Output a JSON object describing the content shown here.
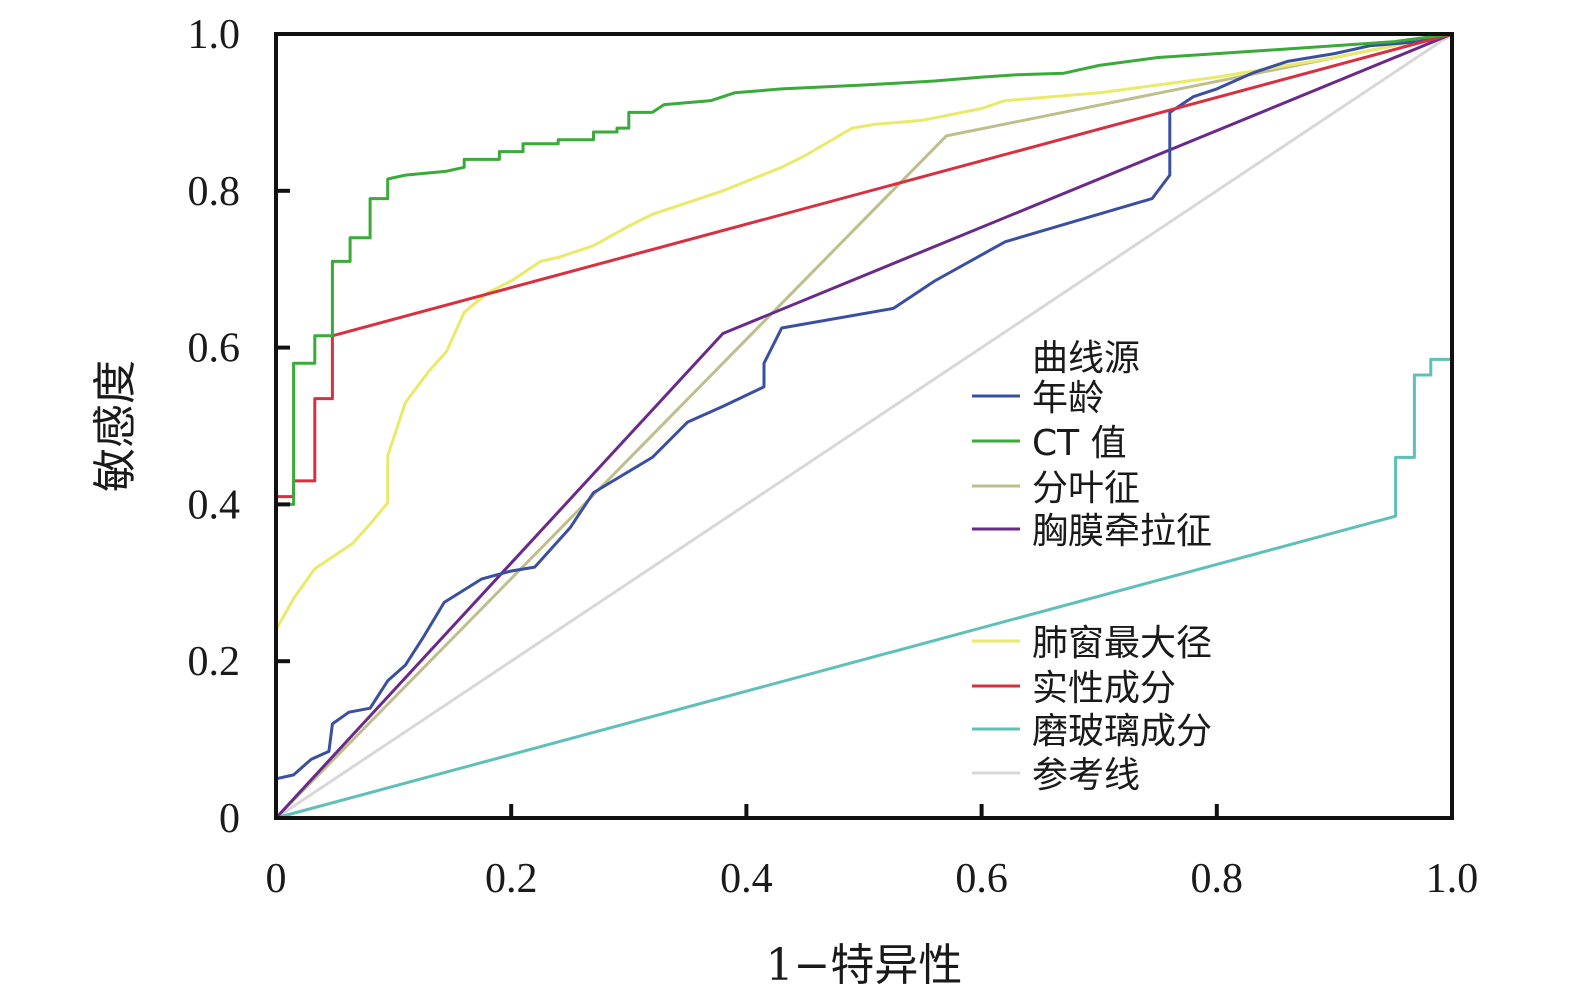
{
  "chart_data": {
    "type": "line",
    "title": "",
    "xlabel": "1−特异性",
    "ylabel": "敏感度",
    "xlim": [
      0,
      1
    ],
    "ylim": [
      0,
      1
    ],
    "x_ticks": [
      "0",
      "0.2",
      "0.4",
      "0.6",
      "0.8",
      "1.0"
    ],
    "y_ticks": [
      "0",
      "0.2",
      "0.4",
      "0.6",
      "0.8",
      "1.0"
    ],
    "grid": false,
    "legend_placement": "right",
    "legend_title": "曲线源",
    "series": [
      {
        "name": "年龄",
        "color": "#3a4fa0",
        "points": [
          [
            0,
            0
          ],
          [
            0,
            0.05
          ],
          [
            0.015,
            0.055
          ],
          [
            0.03,
            0.075
          ],
          [
            0.045,
            0.085
          ],
          [
            0.048,
            0.12
          ],
          [
            0.062,
            0.135
          ],
          [
            0.08,
            0.14
          ],
          [
            0.095,
            0.175
          ],
          [
            0.11,
            0.195
          ],
          [
            0.125,
            0.23
          ],
          [
            0.143,
            0.275
          ],
          [
            0.175,
            0.305
          ],
          [
            0.2,
            0.315
          ],
          [
            0.22,
            0.32
          ],
          [
            0.25,
            0.37
          ],
          [
            0.27,
            0.415
          ],
          [
            0.32,
            0.46
          ],
          [
            0.35,
            0.505
          ],
          [
            0.38,
            0.525
          ],
          [
            0.415,
            0.55
          ],
          [
            0.415,
            0.58
          ],
          [
            0.43,
            0.625
          ],
          [
            0.525,
            0.65
          ],
          [
            0.56,
            0.685
          ],
          [
            0.62,
            0.735
          ],
          [
            0.745,
            0.79
          ],
          [
            0.76,
            0.82
          ],
          [
            0.76,
            0.9
          ],
          [
            0.78,
            0.92
          ],
          [
            0.8,
            0.93
          ],
          [
            0.83,
            0.95
          ],
          [
            0.86,
            0.965
          ],
          [
            0.9,
            0.975
          ],
          [
            0.93,
            0.985
          ],
          [
            0.97,
            0.99
          ],
          [
            1,
            1
          ]
        ]
      },
      {
        "name": "CT 值",
        "color": "#3aaa3a",
        "points": [
          [
            0,
            0
          ],
          [
            0,
            0.4
          ],
          [
            0.015,
            0.4
          ],
          [
            0.015,
            0.58
          ],
          [
            0.033,
            0.58
          ],
          [
            0.033,
            0.615
          ],
          [
            0.048,
            0.615
          ],
          [
            0.048,
            0.71
          ],
          [
            0.063,
            0.71
          ],
          [
            0.063,
            0.74
          ],
          [
            0.08,
            0.74
          ],
          [
            0.08,
            0.79
          ],
          [
            0.095,
            0.79
          ],
          [
            0.095,
            0.815
          ],
          [
            0.11,
            0.82
          ],
          [
            0.145,
            0.825
          ],
          [
            0.16,
            0.83
          ],
          [
            0.16,
            0.84
          ],
          [
            0.19,
            0.84
          ],
          [
            0.19,
            0.85
          ],
          [
            0.21,
            0.85
          ],
          [
            0.21,
            0.86
          ],
          [
            0.24,
            0.86
          ],
          [
            0.24,
            0.865
          ],
          [
            0.27,
            0.865
          ],
          [
            0.27,
            0.875
          ],
          [
            0.29,
            0.875
          ],
          [
            0.29,
            0.88
          ],
          [
            0.3,
            0.88
          ],
          [
            0.3,
            0.9
          ],
          [
            0.32,
            0.9
          ],
          [
            0.33,
            0.91
          ],
          [
            0.37,
            0.915
          ],
          [
            0.39,
            0.925
          ],
          [
            0.43,
            0.93
          ],
          [
            0.5,
            0.935
          ],
          [
            0.56,
            0.94
          ],
          [
            0.6,
            0.945
          ],
          [
            0.63,
            0.948
          ],
          [
            0.67,
            0.95
          ],
          [
            0.7,
            0.96
          ],
          [
            0.75,
            0.97
          ],
          [
            0.8,
            0.975
          ],
          [
            0.85,
            0.98
          ],
          [
            0.9,
            0.985
          ],
          [
            0.95,
            0.99
          ],
          [
            1,
            1
          ]
        ]
      },
      {
        "name": "分叶征",
        "color": "#bfbf8c",
        "points": [
          [
            0,
            0
          ],
          [
            0.57,
            0.87
          ],
          [
            1,
            1
          ]
        ]
      },
      {
        "name": "胸膜牵拉征",
        "color": "#6a2a8a",
        "points": [
          [
            0,
            0
          ],
          [
            0.38,
            0.618
          ],
          [
            1,
            1
          ]
        ]
      },
      {
        "name": "肺窗最大径",
        "color": "#eaea6a",
        "points": [
          [
            0,
            0.24
          ],
          [
            0.015,
            0.28
          ],
          [
            0.033,
            0.318
          ],
          [
            0.05,
            0.335
          ],
          [
            0.065,
            0.35
          ],
          [
            0.08,
            0.375
          ],
          [
            0.095,
            0.402
          ],
          [
            0.095,
            0.462
          ],
          [
            0.11,
            0.53
          ],
          [
            0.13,
            0.57
          ],
          [
            0.145,
            0.595
          ],
          [
            0.16,
            0.645
          ],
          [
            0.18,
            0.67
          ],
          [
            0.2,
            0.685
          ],
          [
            0.225,
            0.71
          ],
          [
            0.24,
            0.715
          ],
          [
            0.27,
            0.73
          ],
          [
            0.3,
            0.755
          ],
          [
            0.32,
            0.77
          ],
          [
            0.35,
            0.785
          ],
          [
            0.38,
            0.8
          ],
          [
            0.43,
            0.83
          ],
          [
            0.45,
            0.845
          ],
          [
            0.49,
            0.88
          ],
          [
            0.51,
            0.885
          ],
          [
            0.55,
            0.89
          ],
          [
            0.6,
            0.905
          ],
          [
            0.62,
            0.915
          ],
          [
            0.7,
            0.925
          ],
          [
            0.8,
            0.945
          ],
          [
            0.9,
            0.97
          ],
          [
            1,
            1
          ]
        ]
      },
      {
        "name": "实性成分",
        "color": "#d83040",
        "points": [
          [
            0,
            0
          ],
          [
            0,
            0.41
          ],
          [
            0.015,
            0.41
          ],
          [
            0.015,
            0.43
          ],
          [
            0.033,
            0.43
          ],
          [
            0.033,
            0.535
          ],
          [
            0.048,
            0.535
          ],
          [
            0.048,
            0.615
          ],
          [
            1,
            1
          ]
        ]
      },
      {
        "name": "磨玻璃成分",
        "color": "#5ec0b8",
        "points": [
          [
            0,
            0
          ],
          [
            0.952,
            0.385
          ],
          [
            0.952,
            0.46
          ],
          [
            0.968,
            0.46
          ],
          [
            0.968,
            0.565
          ],
          [
            0.982,
            0.565
          ],
          [
            0.982,
            0.585
          ],
          [
            1,
            0.585
          ],
          [
            1,
            1
          ]
        ]
      },
      {
        "name": "参考线",
        "color": "#d8d8d8",
        "points": [
          [
            0,
            0
          ],
          [
            1,
            1
          ]
        ]
      }
    ]
  }
}
